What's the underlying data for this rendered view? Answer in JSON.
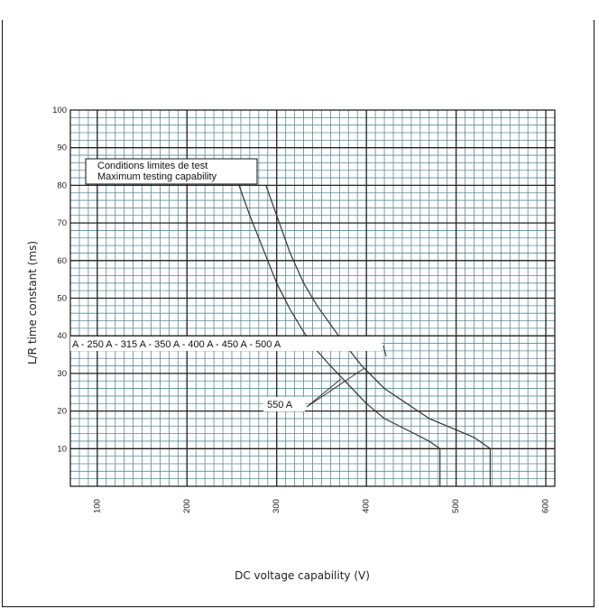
{
  "header": {
    "title": ""
  },
  "chart_data": {
    "type": "line",
    "title": "",
    "xlabel": "DC voltage capability (V)",
    "ylabel": "L/R time constant (ms)",
    "xlim": [
      70,
      610
    ],
    "ylim": [
      0,
      100
    ],
    "x_ticks": [
      100,
      200,
      300,
      400,
      500,
      600
    ],
    "y_ticks": [
      10,
      20,
      30,
      40,
      50,
      60,
      70,
      80,
      90,
      100
    ],
    "grid": true,
    "series": [
      {
        "name": "A - 250 A - 315 A - 350 A - 400 A - 450 A - 500 A",
        "x": [
          255,
          270,
          285,
          300,
          315,
          330,
          345,
          360,
          380,
          400,
          420,
          445,
          470,
          482,
          482
        ],
        "y": [
          82,
          72,
          63,
          54,
          47,
          41,
          36,
          32,
          27,
          22,
          18,
          15,
          12,
          10,
          0
        ]
      },
      {
        "name": "550 A",
        "x": [
          288,
          300,
          315,
          330,
          345,
          360,
          375,
          395,
          420,
          445,
          470,
          500,
          520,
          538,
          538
        ],
        "y": [
          80,
          72,
          62,
          54,
          48,
          43,
          38,
          32,
          26,
          22,
          18,
          15,
          13,
          10,
          0
        ]
      }
    ],
    "annotations": [
      {
        "text": "Conditions limites de test"
      },
      {
        "text": "Maximum testing capability"
      },
      {
        "text": "A - 250 A - 315 A - 350 A - 400 A - 450 A - 500 A"
      },
      {
        "text": "550 A"
      }
    ]
  }
}
